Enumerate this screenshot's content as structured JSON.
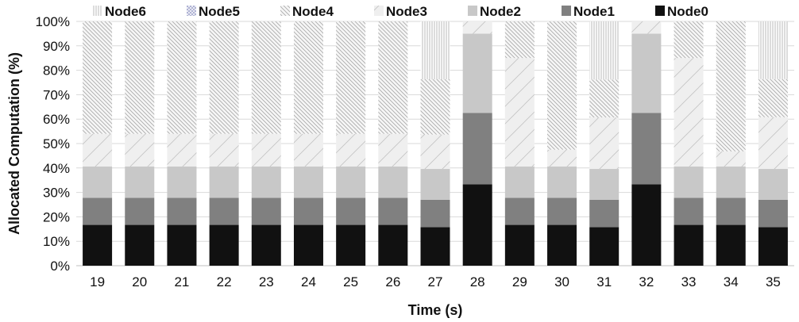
{
  "chart_data": {
    "type": "bar",
    "stacked": true,
    "xlabel": "Time (s)",
    "ylabel": "Allocated Computation (%)",
    "ylim": [
      0,
      100
    ],
    "yticks": [
      0,
      10,
      20,
      30,
      40,
      50,
      60,
      70,
      80,
      90,
      100
    ],
    "ytick_suffix": "%",
    "legend_position": "top",
    "categories": [
      "19",
      "20",
      "21",
      "22",
      "23",
      "24",
      "25",
      "26",
      "27",
      "28",
      "29",
      "30",
      "31",
      "32",
      "33",
      "34",
      "35"
    ],
    "series": [
      {
        "name": "Node0",
        "color": "#111111",
        "pattern": "solid",
        "values": [
          16.7,
          16.7,
          16.7,
          16.7,
          16.7,
          16.7,
          16.7,
          16.7,
          15.8,
          33.3,
          16.7,
          16.7,
          15.8,
          33.3,
          16.7,
          16.7,
          15.8
        ]
      },
      {
        "name": "Node1",
        "color": "#808080",
        "pattern": "solid",
        "values": [
          11.1,
          11.1,
          11.1,
          11.1,
          11.1,
          11.1,
          11.1,
          11.1,
          11.2,
          29.2,
          11.1,
          11.1,
          11.2,
          29.2,
          11.1,
          11.1,
          11.2
        ]
      },
      {
        "name": "Node2",
        "color": "#c8c8c8",
        "pattern": "solid",
        "values": [
          12.8,
          12.8,
          12.8,
          12.8,
          12.8,
          12.8,
          12.8,
          12.8,
          12.6,
          32.5,
          12.8,
          12.8,
          12.6,
          32.5,
          12.8,
          12.8,
          12.6
        ]
      },
      {
        "name": "Node3",
        "color": "#efefef",
        "pattern": "diag-sparse",
        "values": [
          13.4,
          13.4,
          13.4,
          13.4,
          13.4,
          13.4,
          13.4,
          13.4,
          14.1,
          5.0,
          44.4,
          6.9,
          21.1,
          5.0,
          44.4,
          6.2,
          21.2
        ]
      },
      {
        "name": "Node4",
        "color": "#bbbbbb",
        "pattern": "diag-dense",
        "values": [
          46.0,
          46.0,
          46.0,
          46.0,
          46.0,
          46.0,
          46.0,
          46.0,
          22.6,
          0,
          15.0,
          52.5,
          15.5,
          0,
          15.0,
          53.2,
          15.6
        ]
      },
      {
        "name": "Node5",
        "color": "#9aa0c8",
        "pattern": "crosshatch",
        "values": [
          0,
          0,
          0,
          0,
          0,
          0,
          0,
          0,
          0,
          0,
          0,
          0,
          0,
          0,
          0,
          0,
          0
        ]
      },
      {
        "name": "Node6",
        "color": "#999999",
        "pattern": "vertical",
        "values": [
          0,
          0,
          0,
          0,
          0,
          0,
          0,
          0,
          23.7,
          0,
          0,
          0,
          23.8,
          0,
          0,
          0,
          23.6
        ]
      }
    ]
  }
}
